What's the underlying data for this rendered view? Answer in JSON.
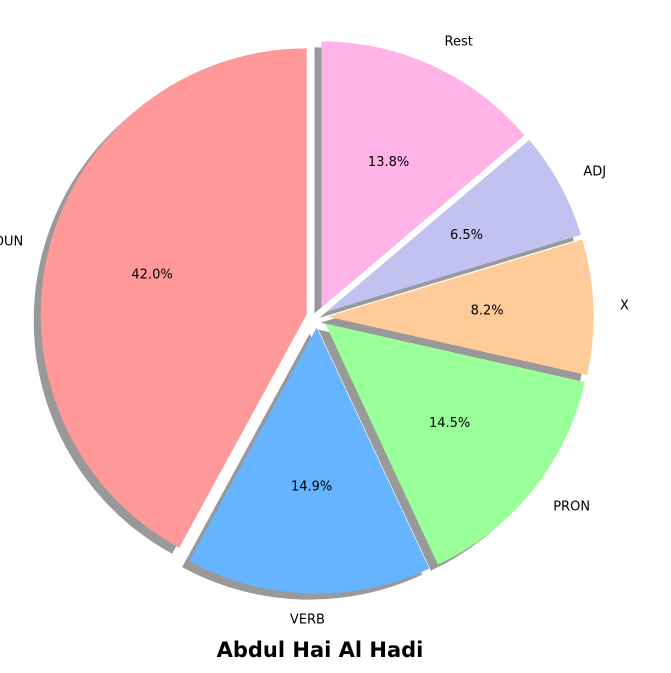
{
  "chart_data": {
    "type": "pie",
    "title": "Abdul Hai Al Hadi",
    "slices": [
      {
        "label": "NOUN",
        "value": 42.0,
        "pct_label": "42.0%",
        "color": "#ff9999"
      },
      {
        "label": "VERB",
        "value": 14.9,
        "pct_label": "14.9%",
        "color": "#66b3ff"
      },
      {
        "label": "PRON",
        "value": 14.5,
        "pct_label": "14.5%",
        "color": "#99ff99"
      },
      {
        "label": "X",
        "value": 8.2,
        "pct_label": "8.2%",
        "color": "#ffcc99"
      },
      {
        "label": "ADJ",
        "value": 6.5,
        "pct_label": "6.5%",
        "color": "#c2c2f0"
      },
      {
        "label": "Rest",
        "value": 13.8,
        "pct_label": "13.8%",
        "color": "#ffb3e6"
      }
    ],
    "shadow": true,
    "exploded": true
  }
}
